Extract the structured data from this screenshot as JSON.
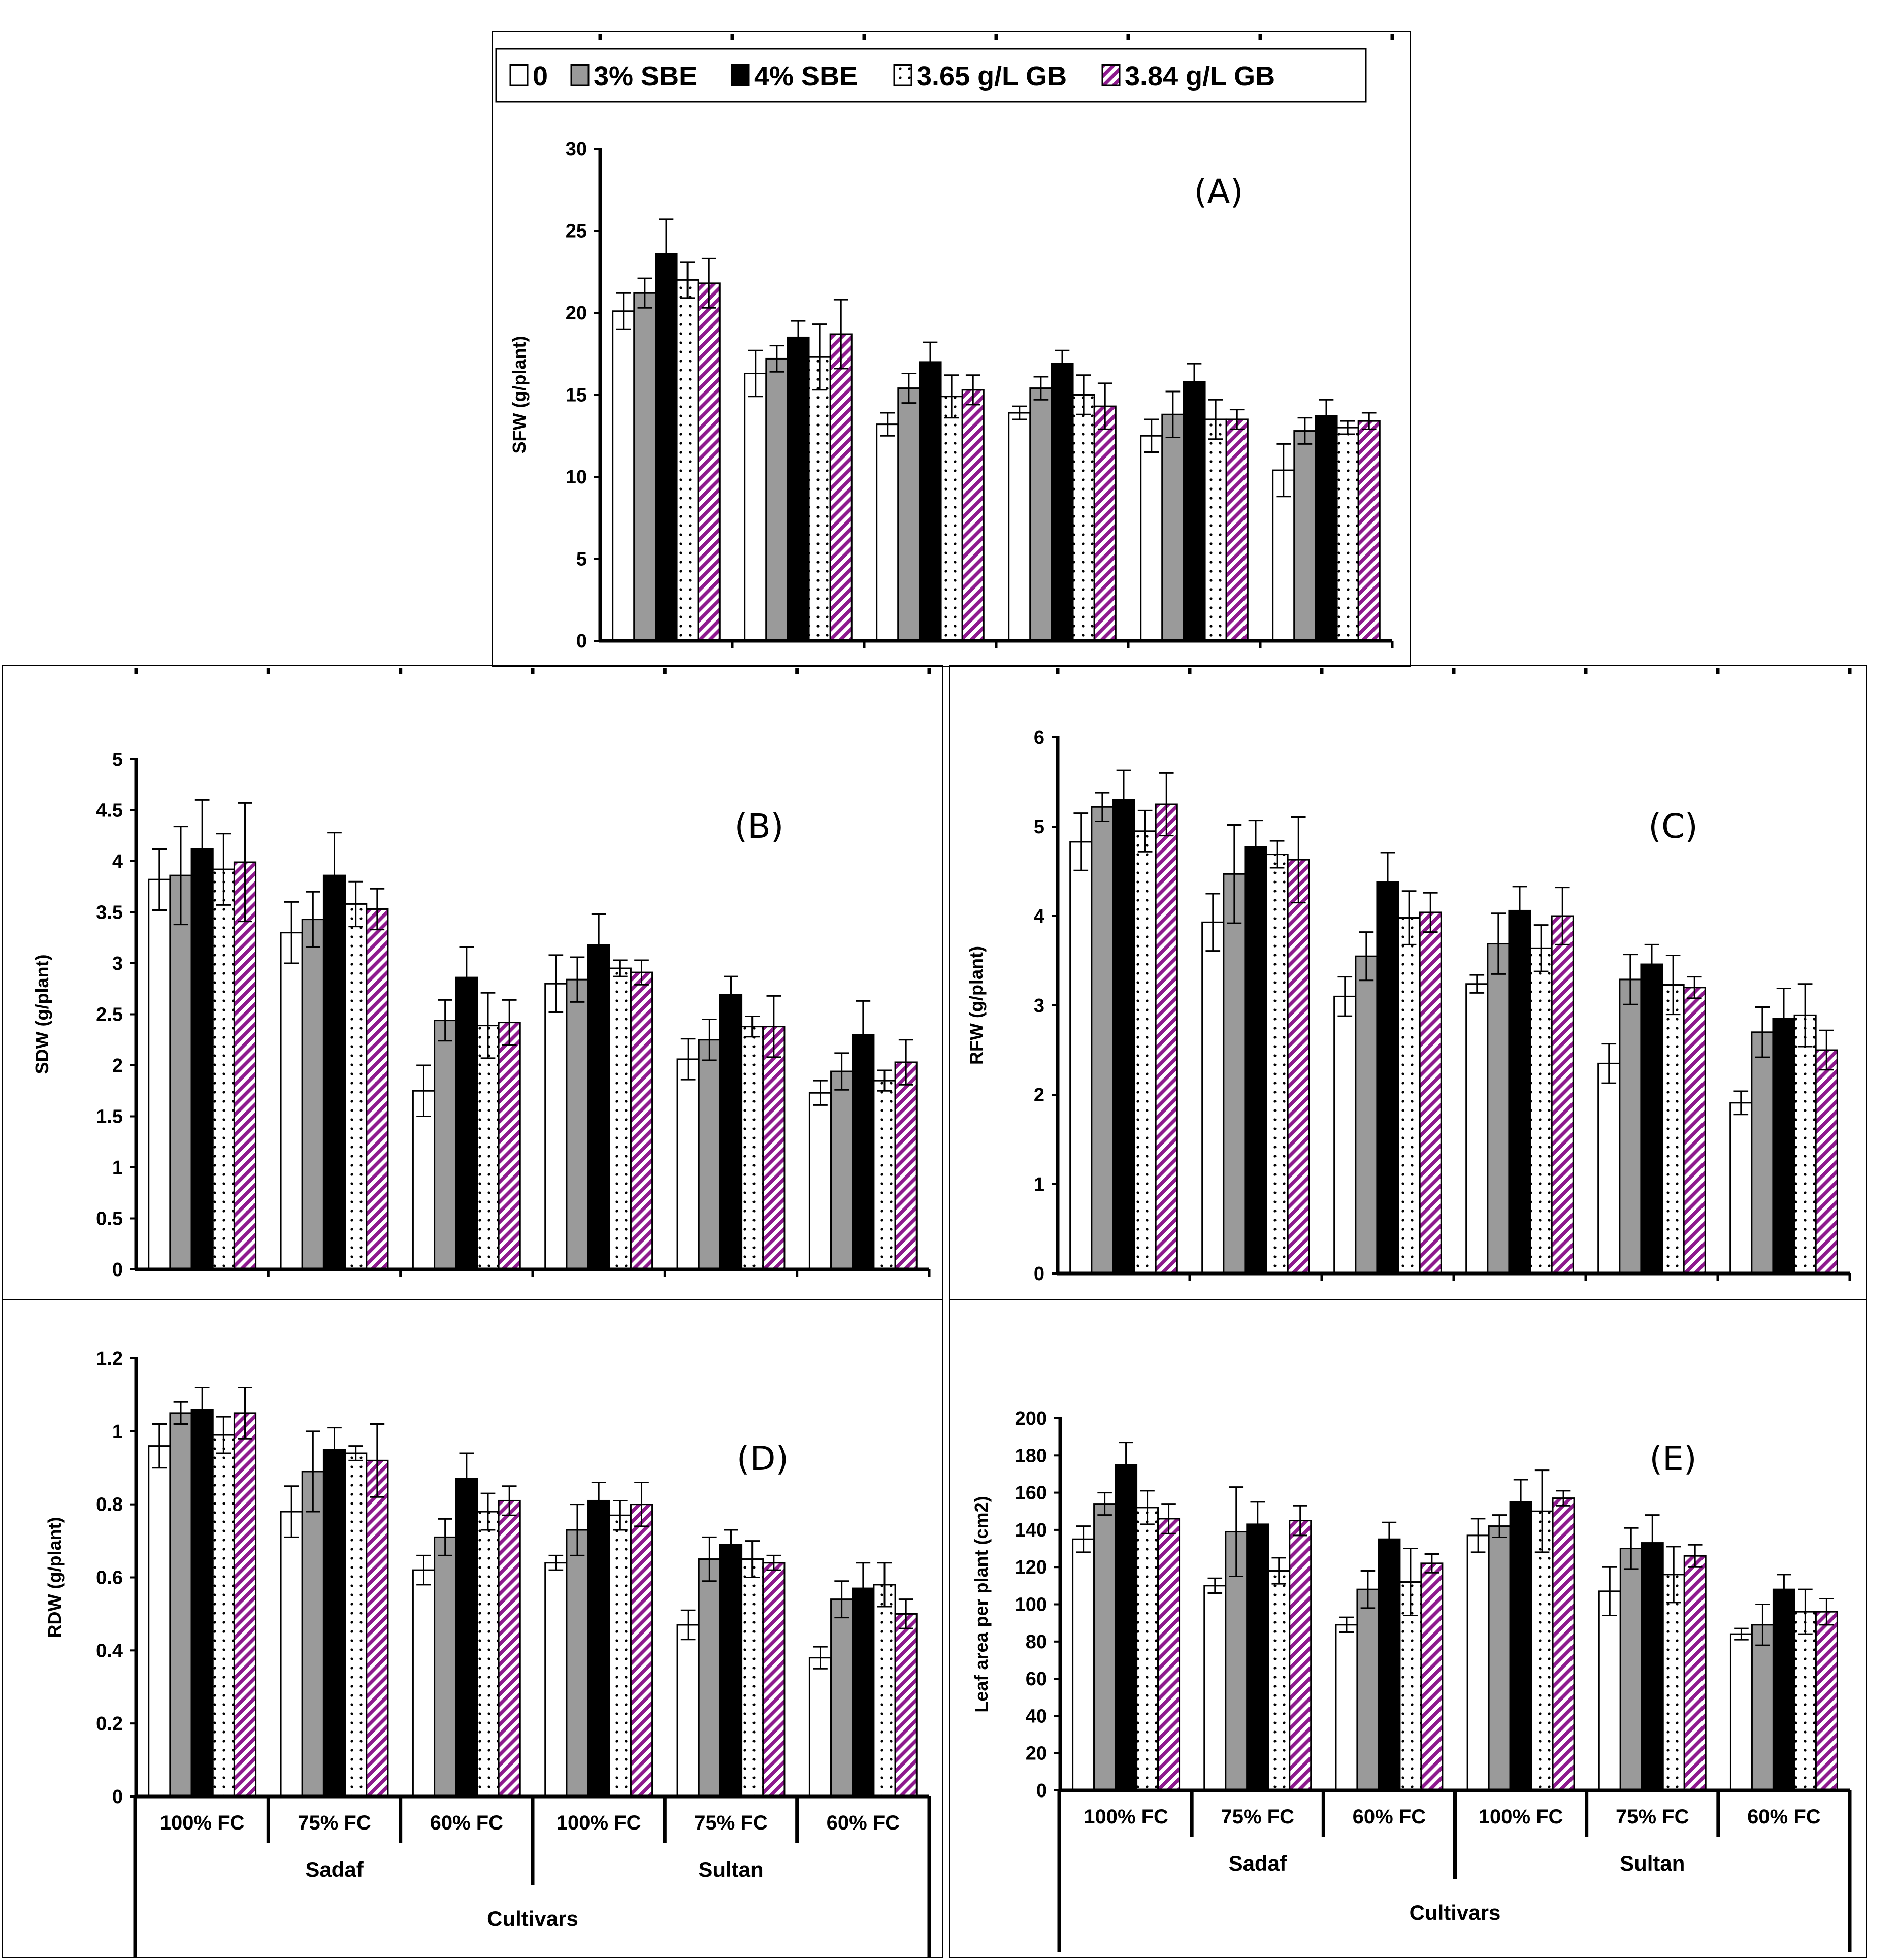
{
  "legend": [
    {
      "label": "0",
      "pattern": "white"
    },
    {
      "label": "3% SBE",
      "pattern": "gray"
    },
    {
      "label": "4% SBE",
      "pattern": "black"
    },
    {
      "label": "3.65 g/L GB",
      "pattern": "dots"
    },
    {
      "label": "3.84 g/L GB",
      "pattern": "stripes"
    }
  ],
  "colors": {
    "gray_bar": "#9a9a9a",
    "black_bar": "#000000",
    "stripe": "#8e1a8e",
    "axis": "#000000"
  },
  "x_axis": {
    "categories": [
      "100% FC",
      "75% FC",
      "60% FC",
      "100% FC",
      "75% FC",
      "60% FC"
    ],
    "groups": [
      "Sadaf",
      "Sultan"
    ],
    "title": "Cultivars"
  },
  "chart_data": [
    {
      "type": "bar",
      "panel": "(A)",
      "ylabel": "SFW (g/plant)",
      "ylim": [
        0,
        30
      ],
      "yticks": [
        "0",
        "5",
        "10",
        "15",
        "20",
        "25",
        "30"
      ],
      "categories": [
        "100% FC",
        "75% FC",
        "60% FC",
        "100% FC",
        "75% FC",
        "60% FC"
      ],
      "series": [
        {
          "name": "0",
          "values": [
            20.1,
            16.3,
            13.2,
            13.9,
            12.5,
            10.4
          ],
          "errors": [
            1.1,
            1.4,
            0.7,
            0.4,
            1.0,
            1.6
          ]
        },
        {
          "name": "3% SBE",
          "values": [
            21.2,
            17.2,
            15.4,
            15.4,
            13.8,
            12.8
          ],
          "errors": [
            0.9,
            0.8,
            0.9,
            0.7,
            1.4,
            0.8
          ]
        },
        {
          "name": "4% SBE",
          "values": [
            23.6,
            18.5,
            17.0,
            16.9,
            15.8,
            13.7
          ],
          "errors": [
            2.1,
            1.0,
            1.2,
            0.8,
            1.1,
            1.0
          ]
        },
        {
          "name": "3.65 g/L GB",
          "values": [
            22.0,
            17.3,
            14.9,
            15.0,
            13.5,
            13.0
          ],
          "errors": [
            1.1,
            2.0,
            1.3,
            1.2,
            1.2,
            0.4
          ]
        },
        {
          "name": "3.84 g/L GB",
          "values": [
            21.8,
            18.7,
            15.3,
            14.3,
            13.5,
            13.4
          ],
          "errors": [
            1.5,
            2.1,
            0.9,
            1.4,
            0.6,
            0.5
          ]
        }
      ]
    },
    {
      "type": "bar",
      "panel": "(B)",
      "ylabel": "SDW (g/plant)",
      "ylim": [
        0,
        5
      ],
      "yticks": [
        "0",
        "0.5",
        "1",
        "1.5",
        "2",
        "2.5",
        "3",
        "3.5",
        "4",
        "4.5",
        "5"
      ],
      "categories": [
        "100% FC",
        "75% FC",
        "60% FC",
        "100% FC",
        "75% FC",
        "60% FC"
      ],
      "series": [
        {
          "name": "0",
          "values": [
            3.82,
            3.3,
            1.75,
            2.8,
            2.06,
            1.73
          ],
          "errors": [
            0.3,
            0.3,
            0.25,
            0.28,
            0.2,
            0.12
          ]
        },
        {
          "name": "3% SBE",
          "values": [
            3.86,
            3.43,
            2.44,
            2.84,
            2.25,
            1.94
          ],
          "errors": [
            0.48,
            0.27,
            0.2,
            0.22,
            0.2,
            0.18
          ]
        },
        {
          "name": "4% SBE",
          "values": [
            4.12,
            3.86,
            2.86,
            3.18,
            2.69,
            2.3
          ],
          "errors": [
            0.48,
            0.42,
            0.3,
            0.3,
            0.18,
            0.33
          ]
        },
        {
          "name": "3.65 g/L GB",
          "values": [
            3.92,
            3.58,
            2.39,
            2.95,
            2.38,
            1.85
          ],
          "errors": [
            0.35,
            0.22,
            0.32,
            0.08,
            0.1,
            0.1
          ]
        },
        {
          "name": "3.84 g/L GB",
          "values": [
            3.99,
            3.53,
            2.42,
            2.91,
            2.38,
            2.03
          ],
          "errors": [
            0.58,
            0.2,
            0.22,
            0.12,
            0.3,
            0.22
          ]
        }
      ]
    },
    {
      "type": "bar",
      "panel": "(C)",
      "ylabel": "RFW (g/plant)",
      "ylim": [
        0,
        6
      ],
      "yticks": [
        "0",
        "1",
        "2",
        "3",
        "4",
        "5",
        "6"
      ],
      "categories": [
        "100% FC",
        "75% FC",
        "60% FC",
        "100% FC",
        "75% FC",
        "60% FC"
      ],
      "series": [
        {
          "name": "0",
          "values": [
            4.83,
            3.93,
            3.1,
            3.24,
            2.35,
            1.91
          ],
          "errors": [
            0.32,
            0.32,
            0.22,
            0.1,
            0.22,
            0.13
          ]
        },
        {
          "name": "3% SBE",
          "values": [
            5.22,
            4.47,
            3.55,
            3.69,
            3.29,
            2.7
          ],
          "errors": [
            0.16,
            0.55,
            0.27,
            0.34,
            0.28,
            0.28
          ]
        },
        {
          "name": "4% SBE",
          "values": [
            5.3,
            4.77,
            4.38,
            4.06,
            3.46,
            2.85
          ],
          "errors": [
            0.33,
            0.3,
            0.33,
            0.27,
            0.22,
            0.34
          ]
        },
        {
          "name": "3.65 g/L GB",
          "values": [
            4.95,
            4.69,
            3.98,
            3.64,
            3.23,
            2.89
          ],
          "errors": [
            0.23,
            0.15,
            0.3,
            0.26,
            0.33,
            0.35
          ]
        },
        {
          "name": "3.84 g/L GB",
          "values": [
            5.25,
            4.63,
            4.04,
            4.0,
            3.2,
            2.5
          ],
          "errors": [
            0.35,
            0.48,
            0.22,
            0.32,
            0.12,
            0.22
          ]
        }
      ]
    },
    {
      "type": "bar",
      "panel": "(D)",
      "ylabel": "RDW (g/plant)",
      "ylim": [
        0,
        1.2
      ],
      "yticks": [
        "0",
        "0.2",
        "0.4",
        "0.6",
        "0.8",
        "1",
        "1.2"
      ],
      "categories": [
        "100% FC",
        "75% FC",
        "60% FC",
        "100% FC",
        "75% FC",
        "60% FC"
      ],
      "series": [
        {
          "name": "0",
          "values": [
            0.96,
            0.78,
            0.62,
            0.64,
            0.47,
            0.38
          ],
          "errors": [
            0.06,
            0.07,
            0.04,
            0.02,
            0.04,
            0.03
          ]
        },
        {
          "name": "3% SBE",
          "values": [
            1.05,
            0.89,
            0.71,
            0.73,
            0.65,
            0.54
          ],
          "errors": [
            0.03,
            0.11,
            0.05,
            0.07,
            0.06,
            0.05
          ]
        },
        {
          "name": "4% SBE",
          "values": [
            1.06,
            0.95,
            0.87,
            0.81,
            0.69,
            0.57
          ],
          "errors": [
            0.06,
            0.06,
            0.07,
            0.05,
            0.04,
            0.07
          ]
        },
        {
          "name": "3.65 g/L GB",
          "values": [
            0.99,
            0.94,
            0.78,
            0.77,
            0.65,
            0.58
          ],
          "errors": [
            0.05,
            0.02,
            0.05,
            0.04,
            0.05,
            0.06
          ]
        },
        {
          "name": "3.84 g/L GB",
          "values": [
            1.05,
            0.92,
            0.81,
            0.8,
            0.64,
            0.5
          ],
          "errors": [
            0.07,
            0.1,
            0.04,
            0.06,
            0.02,
            0.04
          ]
        }
      ]
    },
    {
      "type": "bar",
      "panel": "(E)",
      "ylabel": "Leaf area per plant (cm2)",
      "ylim": [
        0,
        200
      ],
      "yticks": [
        "0",
        "20",
        "40",
        "60",
        "80",
        "100",
        "120",
        "140",
        "160",
        "180",
        "200"
      ],
      "categories": [
        "100% FC",
        "75% FC",
        "60% FC",
        "100% FC",
        "75% FC",
        "60% FC"
      ],
      "series": [
        {
          "name": "0",
          "values": [
            135,
            110,
            89,
            137,
            107,
            84
          ],
          "errors": [
            7,
            4,
            4,
            9,
            13,
            3
          ]
        },
        {
          "name": "3% SBE",
          "values": [
            154,
            139,
            108,
            142,
            130,
            89
          ],
          "errors": [
            6,
            24,
            10,
            6,
            11,
            11
          ]
        },
        {
          "name": "4% SBE",
          "values": [
            175,
            143,
            135,
            155,
            133,
            108
          ],
          "errors": [
            12,
            12,
            9,
            12,
            15,
            8
          ]
        },
        {
          "name": "3.65 g/L GB",
          "values": [
            152,
            118,
            112,
            150,
            116,
            96
          ],
          "errors": [
            9,
            7,
            18,
            22,
            15,
            12
          ]
        },
        {
          "name": "3.84 g/L GB",
          "values": [
            146,
            145,
            122,
            157,
            126,
            96
          ],
          "errors": [
            8,
            8,
            5,
            4,
            6,
            7
          ]
        }
      ]
    }
  ]
}
